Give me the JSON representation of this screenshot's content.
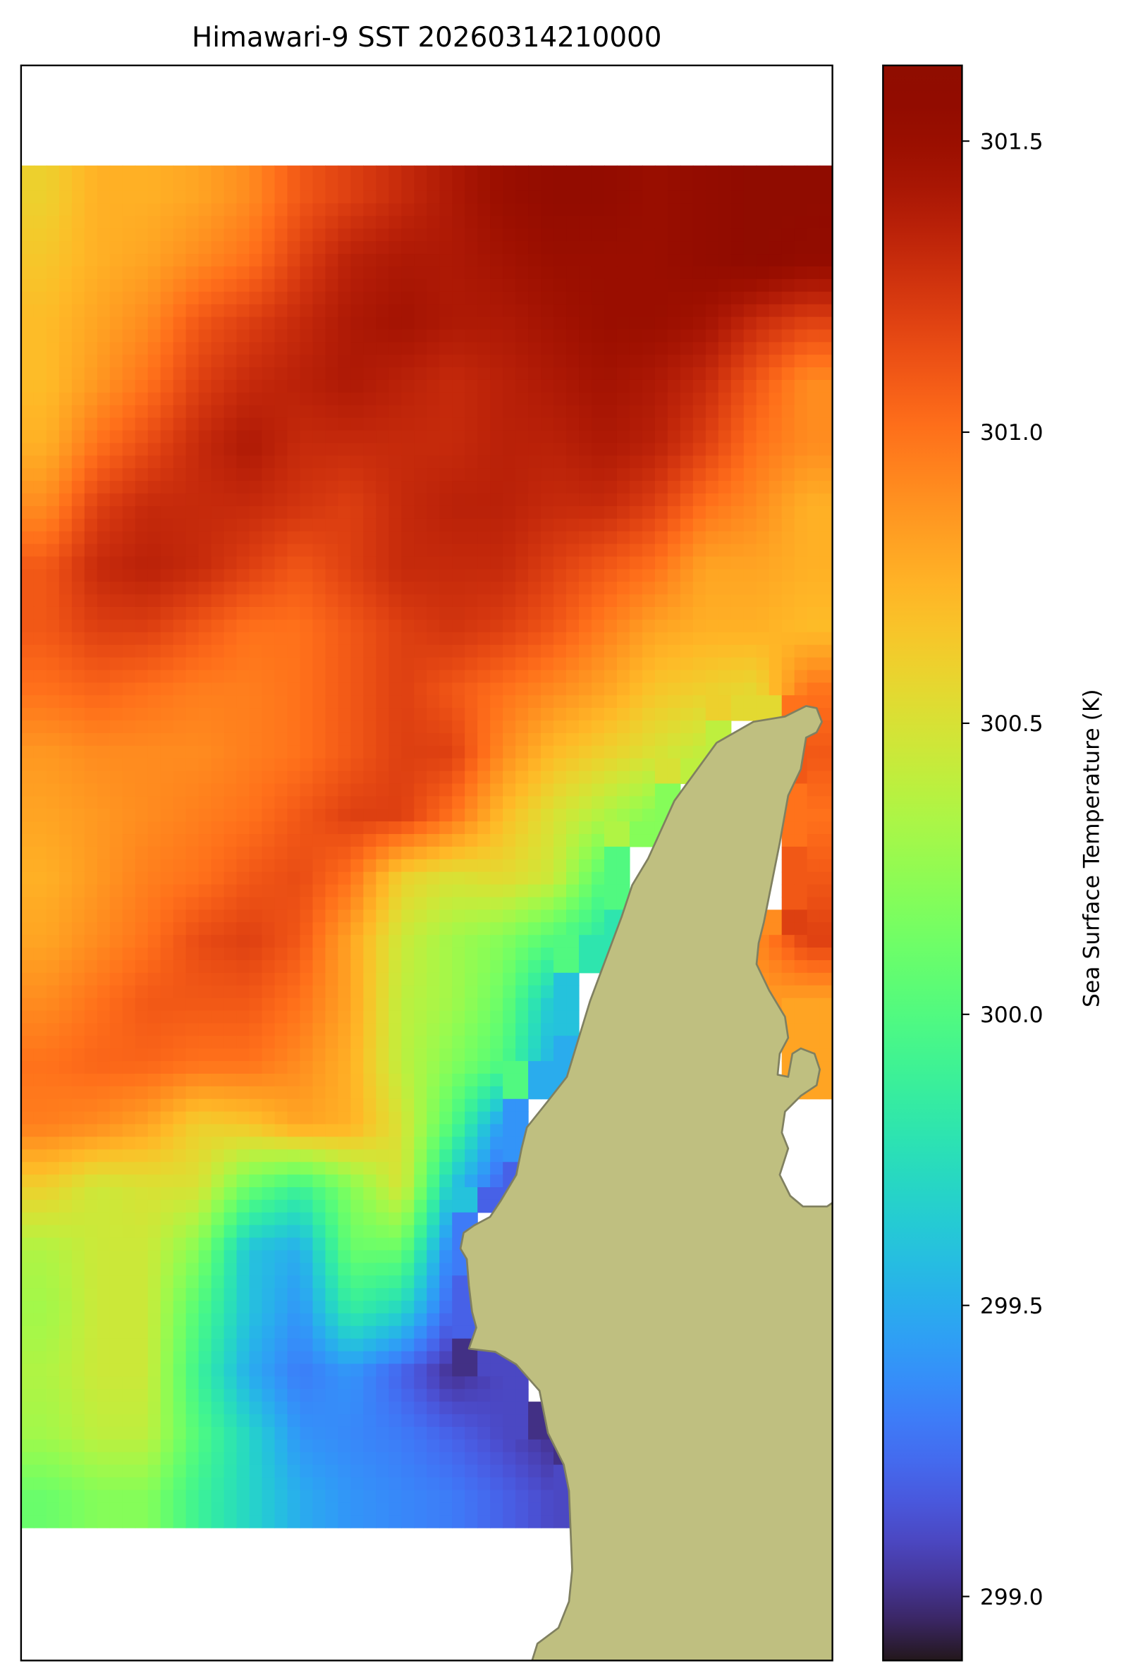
{
  "chart_data": {
    "type": "heatmap",
    "title": "Himawari-9 SST 20260314210000",
    "colorbar": {
      "label": "Sea Surface Temperature (K)",
      "colormap": "turbo",
      "vmin": 298.89,
      "vmax": 301.63,
      "ticks": [
        299.0,
        299.5,
        300.0,
        300.5,
        301.0,
        301.5
      ],
      "tick_labels": [
        "299.0",
        "299.5",
        "300.0",
        "300.5",
        "301.0",
        "301.5"
      ]
    },
    "land_color": "#bfbf80",
    "coast_color": "#808060",
    "missing_color": "#ffffff",
    "grid_rows_north_to_south": [
      [
        300.6,
        300.75,
        300.75,
        300.8,
        300.9,
        301.1,
        301.2,
        301.3,
        301.4,
        301.5,
        301.55,
        301.55,
        301.5,
        301.55,
        301.6,
        301.6
      ],
      [
        300.65,
        300.75,
        300.8,
        300.9,
        301.0,
        301.2,
        301.35,
        301.4,
        301.4,
        301.45,
        301.5,
        301.5,
        301.5,
        301.55,
        301.6,
        301.55
      ],
      [
        300.7,
        300.8,
        300.9,
        301.1,
        301.2,
        301.3,
        301.4,
        301.45,
        301.4,
        301.4,
        301.45,
        301.5,
        301.5,
        301.45,
        301.3,
        301.2
      ],
      [
        300.7,
        300.85,
        301.0,
        301.2,
        301.3,
        301.35,
        301.4,
        301.35,
        301.3,
        301.35,
        301.4,
        301.45,
        301.4,
        301.3,
        301.1,
        300.9
      ],
      [
        300.75,
        301.0,
        301.15,
        301.3,
        301.4,
        301.3,
        301.3,
        301.3,
        301.3,
        301.35,
        301.35,
        301.4,
        301.35,
        301.2,
        301.0,
        300.9
      ],
      [
        300.9,
        301.2,
        301.3,
        301.3,
        301.3,
        301.25,
        301.2,
        301.3,
        301.35,
        301.35,
        301.3,
        301.3,
        301.2,
        301.0,
        300.9,
        300.75
      ],
      [
        301.1,
        301.3,
        301.35,
        301.3,
        301.2,
        301.1,
        301.2,
        301.3,
        301.3,
        301.3,
        301.2,
        301.1,
        301.0,
        300.8,
        300.8,
        300.75
      ],
      [
        301.1,
        301.2,
        301.2,
        301.1,
        301.0,
        301.0,
        301.1,
        301.2,
        301.25,
        301.2,
        301.1,
        300.95,
        300.8,
        300.75,
        300.75,
        300.7
      ],
      [
        301.0,
        301.05,
        301.0,
        300.95,
        300.95,
        301.0,
        301.1,
        301.2,
        301.1,
        301.0,
        300.9,
        300.8,
        300.65,
        300.6,
        300.55,
        301.0
      ],
      [
        300.85,
        300.9,
        300.9,
        300.9,
        300.95,
        301.0,
        301.1,
        301.2,
        301.2,
        300.9,
        300.7,
        300.6,
        300.5,
        300.4,
        null,
        301.1
      ],
      [
        300.8,
        300.85,
        300.9,
        300.95,
        301.0,
        301.1,
        301.2,
        301.2,
        301.0,
        300.7,
        300.5,
        300.35,
        300.2,
        null,
        null,
        301.0
      ],
      [
        300.75,
        300.85,
        300.95,
        301.0,
        301.1,
        301.15,
        301.0,
        300.6,
        300.5,
        300.55,
        300.45,
        300.0,
        null,
        null,
        null,
        301.1
      ],
      [
        300.8,
        300.9,
        301.0,
        301.15,
        301.2,
        301.1,
        300.8,
        300.45,
        300.3,
        300.2,
        300.0,
        299.8,
        null,
        null,
        300.9,
        301.2
      ],
      [
        300.9,
        301.0,
        301.1,
        301.1,
        301.1,
        301.0,
        300.8,
        300.4,
        300.3,
        300.1,
        299.6,
        null,
        null,
        null,
        300.85,
        300.8
      ],
      [
        301.0,
        301.05,
        301.05,
        301.0,
        301.0,
        300.9,
        300.75,
        300.4,
        300.2,
        300.0,
        299.5,
        null,
        null,
        null,
        null,
        300.8
      ],
      [
        300.95,
        300.9,
        300.8,
        300.6,
        300.65,
        300.8,
        300.75,
        300.5,
        300.0,
        299.4,
        null,
        null,
        null,
        null,
        null,
        null
      ],
      [
        300.6,
        300.45,
        300.5,
        300.5,
        300.1,
        299.9,
        300.2,
        300.5,
        299.6,
        299.2,
        null,
        null,
        null,
        null,
        null,
        null
      ],
      [
        300.35,
        300.45,
        300.45,
        300.2,
        299.6,
        299.5,
        300.1,
        300.1,
        299.3,
        null,
        null,
        null,
        null,
        null,
        null,
        null
      ],
      [
        300.3,
        300.45,
        300.45,
        300.0,
        299.6,
        299.4,
        299.85,
        299.7,
        299.2,
        null,
        null,
        null,
        null,
        null,
        null,
        null
      ],
      [
        300.35,
        300.45,
        300.45,
        299.9,
        299.5,
        299.3,
        299.4,
        299.2,
        299.0,
        299.1,
        null,
        null,
        null,
        null,
        null,
        null
      ],
      [
        300.3,
        300.4,
        300.4,
        300.0,
        299.7,
        299.4,
        299.35,
        299.3,
        299.2,
        299.1,
        299.0,
        null,
        null,
        null,
        null,
        null
      ],
      [
        300.1,
        300.2,
        300.2,
        299.9,
        299.7,
        299.5,
        299.4,
        299.35,
        299.3,
        299.2,
        299.1,
        null,
        null,
        null,
        null,
        null
      ]
    ]
  }
}
